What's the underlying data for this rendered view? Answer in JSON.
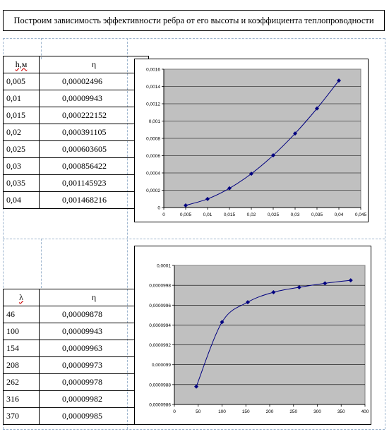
{
  "title": "Построим зависимость эффективности ребра от его высоты и коэффициента теплопроводности",
  "table1": {
    "headers": [
      "h,м",
      "η"
    ],
    "rows": [
      [
        "0,005",
        "0,00002496"
      ],
      [
        "0,01",
        "0,00009943"
      ],
      [
        "0,015",
        "0,000222152"
      ],
      [
        "0,02",
        "0,000391105"
      ],
      [
        "0,025",
        "0,000603605"
      ],
      [
        "0,03",
        "0,000856422"
      ],
      [
        "0,035",
        "0,001145923"
      ],
      [
        "0,04",
        "0,001468216"
      ]
    ]
  },
  "table2": {
    "headers": [
      "λ",
      "η"
    ],
    "rows": [
      [
        "46",
        "0,00009878"
      ],
      [
        "100",
        "0,00009943"
      ],
      [
        "154",
        "0,00009963"
      ],
      [
        "208",
        "0,00009973"
      ],
      [
        "262",
        "0,00009978"
      ],
      [
        "316",
        "0,00009982"
      ],
      [
        "370",
        "0,00009985"
      ]
    ]
  },
  "chart_data": [
    {
      "type": "line",
      "x": [
        0.005,
        0.01,
        0.015,
        0.02,
        0.025,
        0.03,
        0.035,
        0.04
      ],
      "series": [
        {
          "values": [
            2.496e-05,
            9.943e-05,
            0.000222152,
            0.000391105,
            0.000603605,
            0.000856422,
            0.001145923,
            0.001468216
          ]
        }
      ],
      "xlim": [
        0,
        0.045
      ],
      "ylim": [
        0,
        0.0016
      ],
      "x_ticks": [
        "0",
        "0,005",
        "0,01",
        "0,015",
        "0,02",
        "0,025",
        "0,03",
        "0,035",
        "0,04",
        "0,045"
      ],
      "y_ticks": [
        "0",
        "0,0002",
        "0,0004",
        "0,0006",
        "0,0008",
        "0,001",
        "0,0012",
        "0,0014",
        "0,0016"
      ],
      "grid": true,
      "plot_bg": "#c0c0c0",
      "line_color": "#000080"
    },
    {
      "type": "line",
      "x": [
        46,
        100,
        154,
        208,
        262,
        316,
        370
      ],
      "series": [
        {
          "values": [
            9.878e-05,
            9.943e-05,
            9.963e-05,
            9.973e-05,
            9.978e-05,
            9.982e-05,
            9.985e-05
          ]
        }
      ],
      "xlim": [
        0,
        400
      ],
      "ylim": [
        9.86e-05,
        0.0001
      ],
      "x_ticks": [
        "0",
        "50",
        "100",
        "150",
        "200",
        "250",
        "300",
        "350",
        "400"
      ],
      "y_ticks": [
        "0,0000986",
        "0,0000988",
        "0,000099",
        "0,0000992",
        "0,0000994",
        "0,0000996",
        "0,0000998",
        "0,0001"
      ],
      "grid": true,
      "plot_bg": "#c0c0c0",
      "line_color": "#000080"
    }
  ]
}
